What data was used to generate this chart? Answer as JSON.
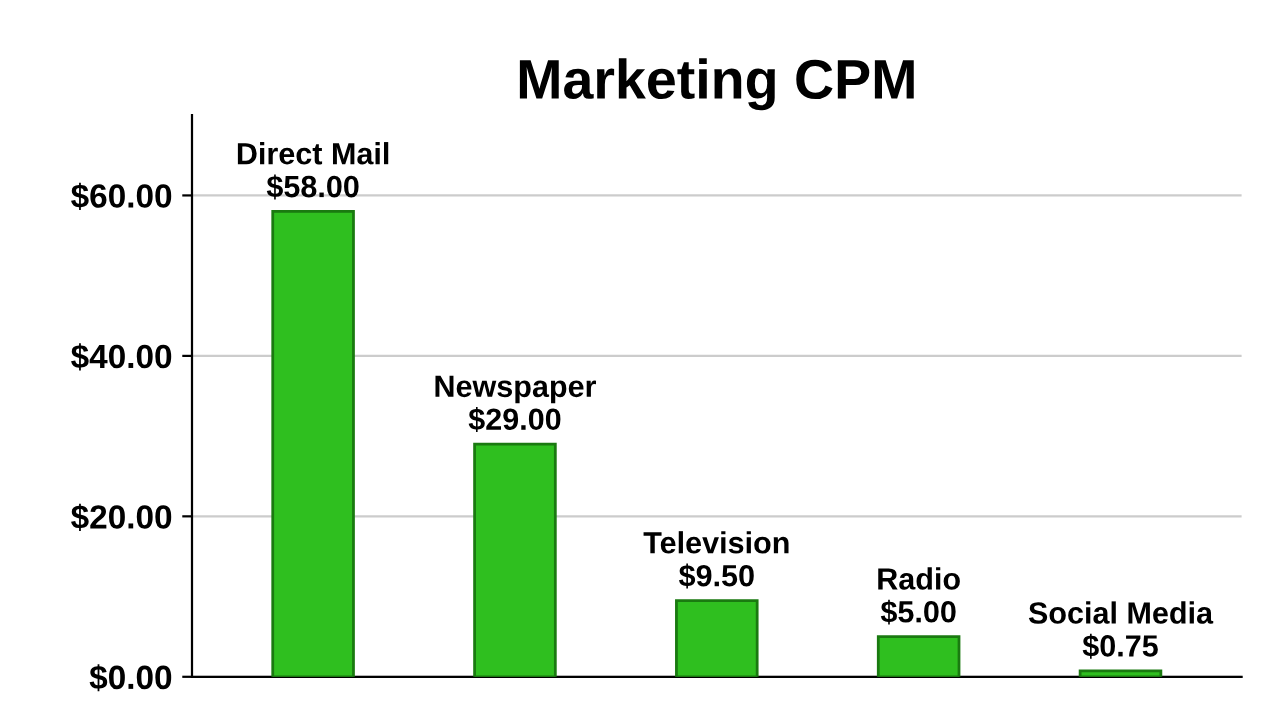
{
  "chart_data": {
    "type": "bar",
    "title": "Marketing CPM",
    "categories": [
      "Direct Mail",
      "Newspaper",
      "Television",
      "Radio",
      "Social Media"
    ],
    "values": [
      58.0,
      29.0,
      9.5,
      5.0,
      0.75
    ],
    "value_labels": [
      "$58.00",
      "$29.00",
      "$9.50",
      "$5.00",
      "$0.75"
    ],
    "color": "#2fbf1f",
    "ylim": [
      0,
      70
    ],
    "yticks": [
      {
        "value": 0,
        "label": "$0.00"
      },
      {
        "value": 20,
        "label": "$20.00"
      },
      {
        "value": 40,
        "label": "$40.00"
      },
      {
        "value": 60,
        "label": "$60.00"
      }
    ],
    "grid": "y",
    "tick_labels": "y"
  }
}
